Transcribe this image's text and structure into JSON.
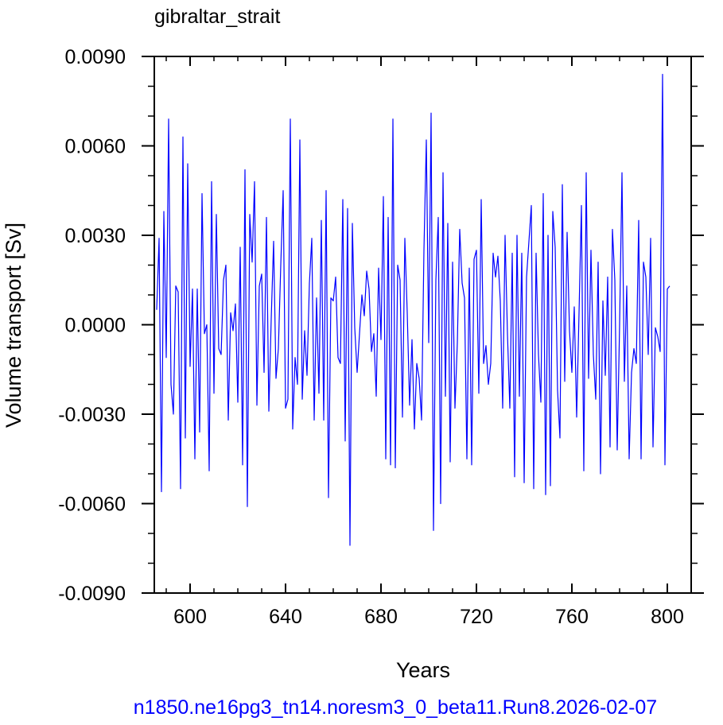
{
  "chart_data": {
    "type": "line",
    "title": "gibraltar_strait",
    "xlabel": "Years",
    "ylabel": "Volume transport [Sv]",
    "xlim": [
      585,
      810
    ],
    "ylim": [
      -0.009,
      0.009
    ],
    "x_ticks": [
      600,
      640,
      680,
      720,
      760,
      800
    ],
    "x_tick_labels": [
      "600",
      "640",
      "680",
      "720",
      "760",
      "800"
    ],
    "y_ticks": [
      -0.009,
      -0.006,
      -0.003,
      0.0,
      0.003,
      0.006,
      0.009
    ],
    "y_tick_labels": [
      "-0.0090",
      "-0.0060",
      "-0.0030",
      "0.0000",
      "0.0030",
      "0.0060",
      "0.0090"
    ],
    "grid": false,
    "line_color": "#0000ff",
    "series": [
      {
        "x_start": 586,
        "x_step": 1,
        "values": [
          0.0005,
          0.0029,
          -0.0056,
          0.0038,
          -0.0011,
          0.0069,
          -0.002,
          -0.003,
          0.0013,
          0.0011,
          -0.0055,
          0.0063,
          -0.0038,
          0.0054,
          -0.0014,
          0.0012,
          -0.0045,
          0.0012,
          -0.0036,
          0.0044,
          -0.0003,
          0.0,
          -0.0049,
          0.0048,
          -0.0023,
          0.0037,
          -0.0008,
          -0.001,
          0.0015,
          0.002,
          -0.0032,
          0.0004,
          -0.0002,
          0.0007,
          -0.0026,
          0.0026,
          -0.0047,
          0.0052,
          -0.0061,
          0.0037,
          0.0021,
          0.0048,
          -0.0027,
          0.0013,
          0.0017,
          -0.0016,
          0.0036,
          -0.0029,
          0.0002,
          0.0028,
          -0.0018,
          -0.0008,
          0.002,
          0.0045,
          -0.0028,
          -0.0025,
          0.0069,
          -0.0035,
          -0.0011,
          -0.002,
          0.0062,
          -0.0025,
          -0.0002,
          -0.0017,
          0.0014,
          0.0029,
          -0.0032,
          0.0009,
          -0.0023,
          0.0035,
          -0.0032,
          0.0045,
          -0.0058,
          0.0009,
          0.0008,
          0.0016,
          -0.0011,
          -0.0013,
          0.0042,
          -0.0039,
          0.0039,
          -0.0074,
          0.0034,
          -0.0001,
          -0.0016,
          -0.0003,
          0.001,
          0.0003,
          0.0018,
          0.0012,
          -0.0009,
          -0.0003,
          -0.0024,
          0.0019,
          -0.0005,
          0.0043,
          -0.0045,
          0.0036,
          -0.0047,
          0.0069,
          -0.0048,
          0.002,
          0.0015,
          -0.0031,
          0.0029,
          0.0004,
          -0.0027,
          -0.0005,
          -0.0035,
          -0.0013,
          -0.0018,
          -0.0032,
          0.0025,
          0.0062,
          -0.0006,
          0.0071,
          -0.0069,
          0.0015,
          0.0036,
          -0.006,
          0.0051,
          -0.0024,
          0.0034,
          -0.0046,
          0.0021,
          -0.0028,
          -0.0006,
          0.0032,
          0.0014,
          0.0009,
          -0.0045,
          0.0019,
          -0.0047,
          0.0022,
          0.0025,
          -0.0023,
          0.0042,
          -0.0013,
          -0.0007,
          -0.002,
          -0.0013,
          0.0024,
          0.0016,
          0.0023,
          0.0008,
          -0.0028,
          0.003,
          -0.0003,
          -0.0028,
          0.0024,
          -0.0051,
          0.003,
          -0.0024,
          0.0024,
          -0.0053,
          0.0016,
          0.0028,
          0.004,
          -0.0055,
          0.0024,
          -0.001,
          -0.0026,
          0.0044,
          -0.0057,
          0.003,
          -0.0054,
          0.0038,
          0.0026,
          -0.0022,
          -0.0038,
          0.0047,
          -0.0019,
          0.0031,
          -0.0002,
          -0.0016,
          0.0006,
          -0.0031,
          0.0004,
          0.004,
          -0.0049,
          0.0051,
          -0.0018,
          0.0025,
          -0.001,
          -0.0025,
          0.0021,
          -0.005,
          0.0008,
          -0.0017,
          0.0016,
          -0.0041,
          0.0032,
          0.0015,
          -0.0042,
          0.0,
          0.0051,
          -0.0019,
          0.0013,
          -0.0045,
          -0.0016,
          -0.0008,
          -0.0013,
          0.0035,
          -0.0045,
          0.0021,
          0.0016,
          -0.001,
          0.0029,
          -0.0041,
          -0.0001,
          -0.0004,
          -0.0009,
          0.0084,
          -0.0047,
          0.0012,
          0.0013
        ]
      }
    ]
  },
  "footer": {
    "run_label": "n1850.ne16pg3_tn14.noresm3_0_beta11.Run8.2026-02-07",
    "run_label_color": "#0000ff"
  }
}
